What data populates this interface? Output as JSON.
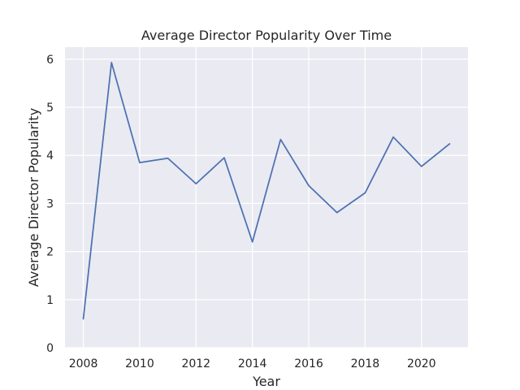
{
  "chart_data": {
    "type": "line",
    "title": "Average Director Popularity Over Time",
    "xlabel": "Year",
    "ylabel": "Average Director Popularity",
    "x": [
      2008,
      2009,
      2010,
      2011,
      2012,
      2013,
      2014,
      2015,
      2016,
      2017,
      2018,
      2019,
      2020,
      2021
    ],
    "series": [
      {
        "values": [
          0.6,
          5.93,
          3.85,
          3.94,
          3.41,
          3.95,
          2.2,
          4.33,
          3.37,
          2.81,
          3.22,
          4.38,
          3.77,
          4.24
        ]
      }
    ],
    "xlim": [
      2007.35,
      2021.65
    ],
    "ylim": [
      0,
      6.25
    ],
    "xticks": [
      2008,
      2010,
      2012,
      2014,
      2016,
      2018,
      2020
    ],
    "yticks": [
      0,
      1,
      2,
      3,
      4,
      5,
      6
    ],
    "grid": true,
    "colors": {
      "line": "#4c72b0",
      "plot_background": "#eaeaf2",
      "grid": "#ffffff",
      "text": "#262626"
    }
  }
}
